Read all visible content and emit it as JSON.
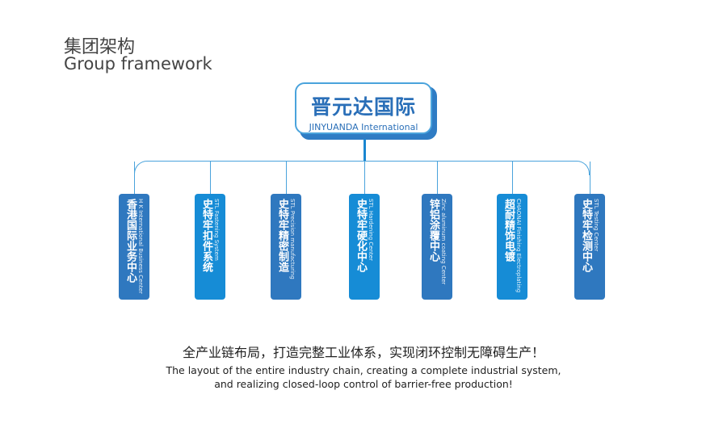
{
  "header": {
    "title_cn": "集团架构",
    "title_en": "Group framework"
  },
  "root": {
    "name_cn": "晋元达国际",
    "name_en": "JINYUANDA International"
  },
  "colors": {
    "dark_box": "#2f78bf",
    "bright_box": "#168cd6",
    "connector": "#4aa3dc"
  },
  "nodes": [
    {
      "cn": "香港国际业务中心",
      "en": "H K International Business Center"
    },
    {
      "cn": "史特牢扣件系统",
      "en": "STL Fastening System"
    },
    {
      "cn": "史特牢精密制造",
      "en": "STL Precision manufacturing"
    },
    {
      "cn": "史特牢硬化中心",
      "en": "STL Hardening Center"
    },
    {
      "cn": "锌铝涂覆中心",
      "en": "Zinc aluminum coating Center"
    },
    {
      "cn": "超耐精饰电镀",
      "en": "CHAONAI Finishing Electroplating"
    },
    {
      "cn": "史特牢检测中心",
      "en": "STL Testing Center"
    }
  ],
  "footer": {
    "cn": "全产业链布局，打造完整工业体系，实现闭环控制无障碍生产！",
    "en_line1": "The layout of the entire industry chain, creating a complete industrial system,",
    "en_line2": "and realizing closed-loop control of barrier-free production!"
  }
}
